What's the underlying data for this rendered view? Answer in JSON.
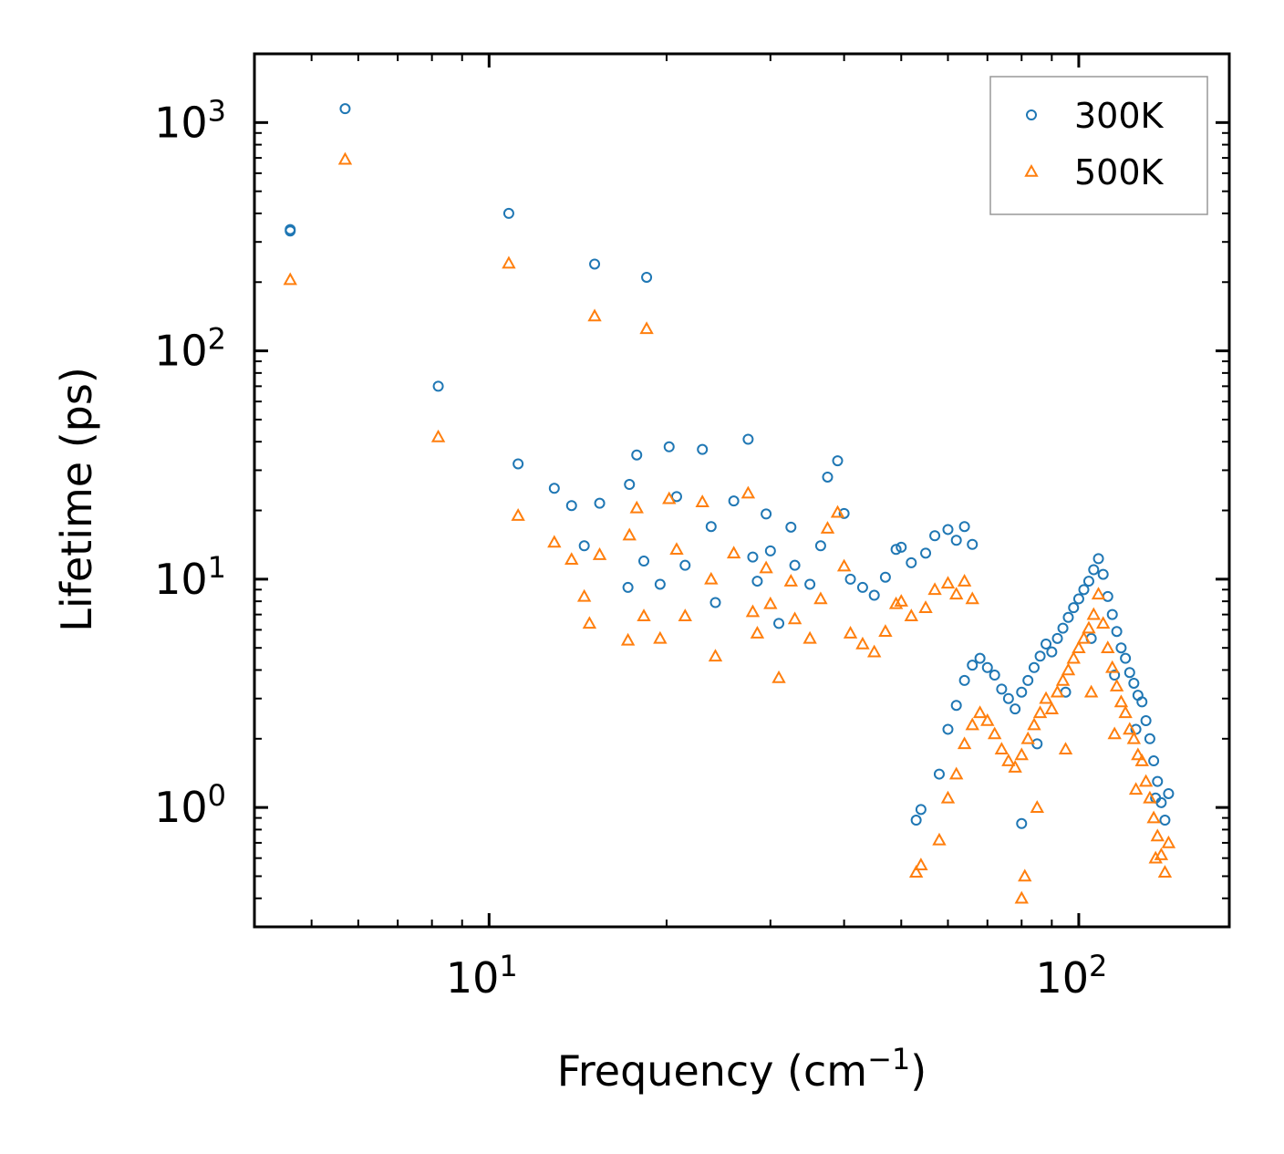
{
  "chart_data": {
    "type": "scatter",
    "title": "",
    "xlabel": "Frequency (cm",
    "xlabel_sup": "−1",
    "xlabel_end": ")",
    "ylabel": "Lifetime (ps)",
    "xscale": "log",
    "yscale": "log",
    "xlim": [
      4.0,
      180.0
    ],
    "ylim": [
      0.3,
      2000
    ],
    "x_ticks": [
      {
        "value": 10,
        "base": "10",
        "exp": "1"
      },
      {
        "value": 100,
        "base": "10",
        "exp": "2"
      }
    ],
    "y_ticks": [
      {
        "value": 1,
        "base": "10",
        "exp": "0"
      },
      {
        "value": 10,
        "base": "10",
        "exp": "1"
      },
      {
        "value": 100,
        "base": "10",
        "exp": "2"
      },
      {
        "value": 1000,
        "base": "10",
        "exp": "3"
      }
    ],
    "legend_position": "top-right",
    "series": [
      {
        "name": "300K",
        "marker": "circle",
        "color": "#1f77b4",
        "points": [
          [
            4.6,
            340
          ],
          [
            4.6,
            335
          ],
          [
            5.7,
            1150
          ],
          [
            8.2,
            70
          ],
          [
            10.8,
            400
          ],
          [
            11.2,
            32
          ],
          [
            12.9,
            25
          ],
          [
            13.8,
            21
          ],
          [
            14.5,
            14
          ],
          [
            15.1,
            240
          ],
          [
            15.4,
            21.5
          ],
          [
            17.2,
            9.2
          ],
          [
            17.3,
            26
          ],
          [
            17.8,
            35
          ],
          [
            18.5,
            210
          ],
          [
            18.3,
            12
          ],
          [
            19.5,
            9.5
          ],
          [
            20.2,
            38
          ],
          [
            20.8,
            23
          ],
          [
            21.5,
            11.5
          ],
          [
            23.0,
            37
          ],
          [
            23.8,
            17
          ],
          [
            24.2,
            7.9
          ],
          [
            26.0,
            22
          ],
          [
            27.5,
            41
          ],
          [
            28.5,
            9.8
          ],
          [
            29.5,
            19.3
          ],
          [
            31.0,
            6.4
          ],
          [
            32.5,
            16.9
          ],
          [
            36.5,
            14
          ],
          [
            37.5,
            28
          ],
          [
            39.0,
            33
          ],
          [
            40.0,
            19.4
          ],
          [
            28.0,
            12.5
          ],
          [
            30.0,
            13.3
          ],
          [
            33.0,
            11.5
          ],
          [
            35.0,
            9.5
          ],
          [
            41.0,
            10.0
          ],
          [
            43.0,
            9.2
          ],
          [
            45.0,
            8.5
          ],
          [
            47.0,
            10.2
          ],
          [
            49.0,
            13.5
          ],
          [
            50.0,
            13.8
          ],
          [
            52.0,
            11.8
          ],
          [
            53.0,
            0.88
          ],
          [
            54.0,
            0.98
          ],
          [
            55.0,
            13.0
          ],
          [
            57.0,
            15.5
          ],
          [
            60.0,
            16.5
          ],
          [
            62.0,
            14.8
          ],
          [
            64.0,
            17.0
          ],
          [
            66.0,
            14.2
          ],
          [
            58.0,
            1.4
          ],
          [
            60.0,
            2.2
          ],
          [
            62.0,
            2.8
          ],
          [
            64.0,
            3.6
          ],
          [
            66.0,
            4.2
          ],
          [
            68.0,
            4.5
          ],
          [
            70.0,
            4.1
          ],
          [
            72.0,
            3.8
          ],
          [
            74.0,
            3.3
          ],
          [
            76.0,
            3.0
          ],
          [
            78.0,
            2.7
          ],
          [
            80.0,
            3.2
          ],
          [
            82.0,
            3.6
          ],
          [
            84.0,
            4.1
          ],
          [
            86.0,
            4.6
          ],
          [
            88.0,
            5.2
          ],
          [
            90.0,
            4.8
          ],
          [
            92.0,
            5.5
          ],
          [
            94.0,
            6.1
          ],
          [
            96.0,
            6.8
          ],
          [
            98.0,
            7.5
          ],
          [
            100.0,
            8.2
          ],
          [
            102.0,
            9.0
          ],
          [
            104.0,
            9.8
          ],
          [
            106.0,
            11.0
          ],
          [
            108.0,
            12.3
          ],
          [
            110.0,
            10.5
          ],
          [
            112.0,
            8.4
          ],
          [
            114.0,
            7.0
          ],
          [
            116.0,
            5.9
          ],
          [
            118.0,
            5.0
          ],
          [
            120.0,
            4.5
          ],
          [
            122.0,
            3.9
          ],
          [
            124.0,
            3.5
          ],
          [
            126.0,
            3.1
          ],
          [
            128.0,
            2.9
          ],
          [
            130.0,
            2.4
          ],
          [
            132.0,
            2.0
          ],
          [
            134.0,
            1.6
          ],
          [
            136.0,
            1.3
          ],
          [
            138.0,
            1.05
          ],
          [
            140.0,
            0.88
          ],
          [
            142.0,
            1.15
          ],
          [
            80.0,
            0.85
          ],
          [
            85.0,
            1.9
          ],
          [
            95.0,
            3.2
          ],
          [
            105.0,
            5.5
          ],
          [
            115.0,
            3.8
          ],
          [
            125.0,
            2.2
          ],
          [
            135.0,
            1.1
          ]
        ]
      },
      {
        "name": "500K",
        "marker": "triangle",
        "color": "#ff7f0e",
        "points": [
          [
            4.6,
            205
          ],
          [
            5.7,
            690
          ],
          [
            8.2,
            42
          ],
          [
            10.8,
            242
          ],
          [
            11.2,
            19
          ],
          [
            12.9,
            14.5
          ],
          [
            13.8,
            12.2
          ],
          [
            14.5,
            8.4
          ],
          [
            14.8,
            6.4
          ],
          [
            15.1,
            142
          ],
          [
            15.4,
            12.8
          ],
          [
            17.2,
            5.4
          ],
          [
            17.3,
            15.6
          ],
          [
            17.8,
            20.5
          ],
          [
            18.5,
            125
          ],
          [
            18.3,
            6.9
          ],
          [
            19.5,
            5.5
          ],
          [
            20.2,
            22.5
          ],
          [
            20.8,
            13.5
          ],
          [
            21.5,
            6.9
          ],
          [
            23.0,
            21.8
          ],
          [
            23.8,
            10.0
          ],
          [
            24.2,
            4.6
          ],
          [
            26.0,
            13.0
          ],
          [
            27.5,
            23.8
          ],
          [
            28.5,
            5.8
          ],
          [
            29.5,
            11.2
          ],
          [
            31.0,
            3.7
          ],
          [
            32.5,
            9.8
          ],
          [
            36.5,
            8.2
          ],
          [
            37.5,
            16.7
          ],
          [
            39.0,
            19.6
          ],
          [
            40.0,
            11.4
          ],
          [
            28.0,
            7.2
          ],
          [
            30.0,
            7.8
          ],
          [
            33.0,
            6.7
          ],
          [
            35.0,
            5.5
          ],
          [
            41.0,
            5.8
          ],
          [
            43.0,
            5.2
          ],
          [
            45.0,
            4.8
          ],
          [
            47.0,
            5.9
          ],
          [
            49.0,
            7.8
          ],
          [
            50.0,
            8.0
          ],
          [
            52.0,
            6.9
          ],
          [
            53.0,
            0.52
          ],
          [
            54.0,
            0.56
          ],
          [
            55.0,
            7.5
          ],
          [
            57.0,
            9.0
          ],
          [
            60.0,
            9.6
          ],
          [
            62.0,
            8.6
          ],
          [
            64.0,
            9.8
          ],
          [
            66.0,
            8.2
          ],
          [
            58.0,
            0.72
          ],
          [
            60.0,
            1.1
          ],
          [
            62.0,
            1.4
          ],
          [
            64.0,
            1.9
          ],
          [
            66.0,
            2.3
          ],
          [
            68.0,
            2.6
          ],
          [
            70.0,
            2.4
          ],
          [
            72.0,
            2.1
          ],
          [
            74.0,
            1.8
          ],
          [
            76.0,
            1.6
          ],
          [
            78.0,
            1.5
          ],
          [
            80.0,
            1.7
          ],
          [
            82.0,
            2.0
          ],
          [
            84.0,
            2.3
          ],
          [
            86.0,
            2.6
          ],
          [
            88.0,
            3.0
          ],
          [
            90.0,
            2.7
          ],
          [
            92.0,
            3.2
          ],
          [
            94.0,
            3.6
          ],
          [
            96.0,
            4.0
          ],
          [
            98.0,
            4.5
          ],
          [
            100.0,
            5.0
          ],
          [
            102.0,
            5.5
          ],
          [
            104.0,
            6.1
          ],
          [
            106.0,
            7.0
          ],
          [
            108.0,
            8.6
          ],
          [
            110.0,
            6.4
          ],
          [
            112.0,
            5.0
          ],
          [
            114.0,
            4.1
          ],
          [
            116.0,
            3.4
          ],
          [
            118.0,
            2.9
          ],
          [
            120.0,
            2.6
          ],
          [
            122.0,
            2.2
          ],
          [
            124.0,
            2.0
          ],
          [
            126.0,
            1.7
          ],
          [
            128.0,
            1.6
          ],
          [
            130.0,
            1.3
          ],
          [
            132.0,
            1.1
          ],
          [
            134.0,
            0.9
          ],
          [
            136.0,
            0.75
          ],
          [
            138.0,
            0.62
          ],
          [
            140.0,
            0.52
          ],
          [
            142.0,
            0.7
          ],
          [
            80.0,
            0.4
          ],
          [
            81.0,
            0.5
          ],
          [
            85.0,
            1.0
          ],
          [
            95.0,
            1.8
          ],
          [
            105.0,
            3.2
          ],
          [
            115.0,
            2.1
          ],
          [
            125.0,
            1.2
          ],
          [
            135.0,
            0.6
          ]
        ]
      }
    ]
  }
}
